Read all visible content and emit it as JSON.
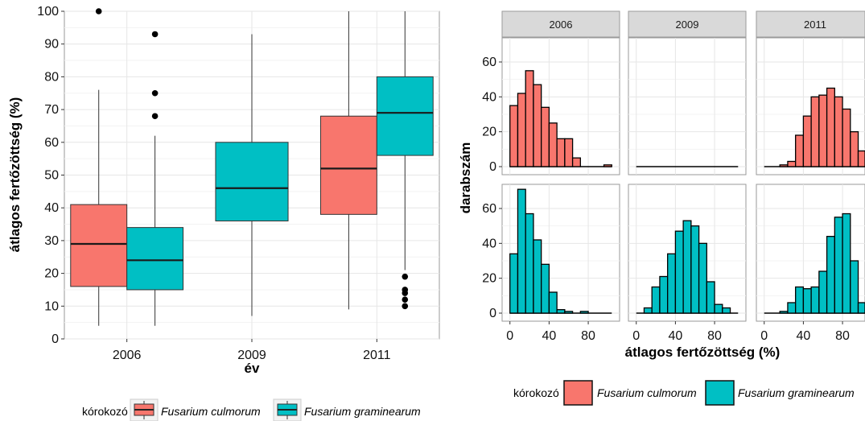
{
  "colors": {
    "culmorum": "#F8766D",
    "graminearum": "#00BFC4",
    "panel_border": "#9a9a9a",
    "grid_major": "#e6e6e6",
    "grid_minor": "#f3f3f3",
    "strip_bg": "#d9d9d9"
  },
  "legend": {
    "title": "kórokozó",
    "items": [
      {
        "label": "Fusarium culmorum",
        "color": "#F8766D"
      },
      {
        "label": "Fusarium graminearum",
        "color": "#00BFC4"
      }
    ]
  },
  "chart_data": [
    {
      "type": "box",
      "xlabel": "év",
      "ylabel": "átlagos fertőzöttség (%)",
      "categories": [
        "2006",
        "2009",
        "2011"
      ],
      "ylim": [
        0,
        100
      ],
      "yticks": [
        0,
        10,
        20,
        30,
        40,
        50,
        60,
        70,
        80,
        90,
        100
      ],
      "grid": true,
      "legend_position": "bottom",
      "boxes": [
        {
          "category": "2006",
          "series": "Fusarium culmorum",
          "whisker_low": 4,
          "q1": 16,
          "median": 29,
          "q3": 41,
          "whisker_high": 76,
          "outliers": [
            100
          ]
        },
        {
          "category": "2006",
          "series": "Fusarium graminearum",
          "whisker_low": 4,
          "q1": 15,
          "median": 24,
          "q3": 34,
          "whisker_high": 62,
          "outliers": [
            68,
            75,
            93
          ]
        },
        {
          "category": "2009",
          "series": "Fusarium graminearum",
          "whisker_low": 7,
          "q1": 36,
          "median": 46,
          "q3": 60,
          "whisker_high": 93,
          "outliers": []
        },
        {
          "category": "2011",
          "series": "Fusarium culmorum",
          "whisker_low": 9,
          "q1": 38,
          "median": 52,
          "q3": 68,
          "whisker_high": 100,
          "outliers": []
        },
        {
          "category": "2011",
          "series": "Fusarium graminearum",
          "whisker_low": 21,
          "q1": 56,
          "median": 69,
          "q3": 80,
          "whisker_high": 100,
          "outliers": [
            10,
            12,
            14,
            15,
            19
          ]
        }
      ]
    },
    {
      "type": "histogram",
      "xlabel": "átlagos fertőzöttség (%)",
      "ylabel": "darabszám",
      "facet_columns": [
        "2006",
        "2009",
        "2011"
      ],
      "facet_rows": [
        "Fusarium culmorum",
        "Fusarium graminearum"
      ],
      "bin_width": 8,
      "bin_starts": [
        0,
        8,
        16,
        24,
        32,
        40,
        48,
        56,
        64,
        72,
        80,
        88,
        96
      ],
      "xlim": [
        -8,
        112
      ],
      "xticks": [
        0,
        40,
        80
      ],
      "ylim": [
        0,
        72
      ],
      "yticks": [
        0,
        20,
        40,
        60
      ],
      "grid": true,
      "panels": [
        {
          "year": "2006",
          "series": "Fusarium culmorum",
          "counts": [
            35,
            42,
            55,
            47,
            34,
            25,
            16,
            16,
            5,
            0,
            0,
            0,
            1
          ]
        },
        {
          "year": "2009",
          "series": "Fusarium culmorum",
          "counts": [
            0,
            0,
            0,
            0,
            0,
            0,
            0,
            0,
            0,
            0,
            0,
            0,
            0
          ]
        },
        {
          "year": "2011",
          "series": "Fusarium culmorum",
          "counts": [
            0,
            0,
            1,
            3,
            18,
            29,
            40,
            41,
            45,
            40,
            33,
            20,
            9
          ]
        },
        {
          "year": "2006",
          "series": "Fusarium graminearum",
          "counts": [
            34,
            71,
            57,
            42,
            28,
            12,
            2,
            1,
            0,
            1,
            0,
            0,
            0
          ]
        },
        {
          "year": "2009",
          "series": "Fusarium graminearum",
          "counts": [
            0,
            3,
            15,
            21,
            34,
            47,
            53,
            50,
            40,
            18,
            5,
            3,
            0
          ]
        },
        {
          "year": "2011",
          "series": "Fusarium graminearum",
          "counts": [
            0,
            0,
            1,
            6,
            15,
            14,
            15,
            24,
            44,
            55,
            57,
            30,
            6
          ]
        }
      ]
    }
  ]
}
